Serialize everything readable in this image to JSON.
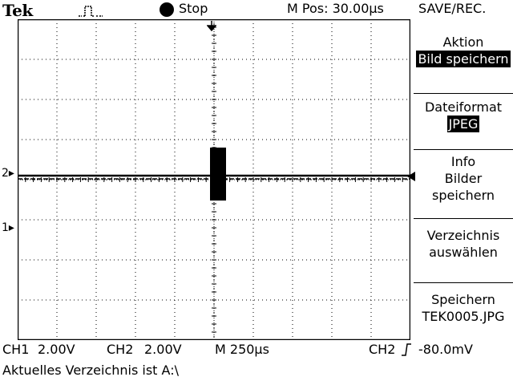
{
  "header": {
    "brand": "Tek",
    "trigger_status": "Stop",
    "m_pos": "M Pos: 30.00µs",
    "trigger_icon": "pulse-trigger-icon",
    "stop_icon": "stop-circle-icon"
  },
  "menu": {
    "title": "SAVE/REC.",
    "items": [
      {
        "label": "Aktion",
        "value": "Bild speichern"
      },
      {
        "label": "Dateiformat",
        "value": "JPEG"
      },
      {
        "label": "Info\nBilder\nspeichern",
        "value": ""
      },
      {
        "label": "Verzeichnis\nauswählen",
        "value": ""
      },
      {
        "label": "Speichern\nTEK0005.JPG",
        "value": ""
      }
    ]
  },
  "channels": {
    "ch2_marker": "2",
    "ch1_marker": "1"
  },
  "status": {
    "ch1": "CH1",
    "ch1_scale": "2.00V",
    "ch2": "CH2",
    "ch2_scale": "2.00V",
    "timebase": "M 250µs",
    "trigger_source": "CH2",
    "trigger_level": "-80.0mV"
  },
  "message": "Aktuelles Verzeichnis ist A:\\",
  "colors": {
    "background": "#ffffff",
    "trace": "#000000"
  }
}
